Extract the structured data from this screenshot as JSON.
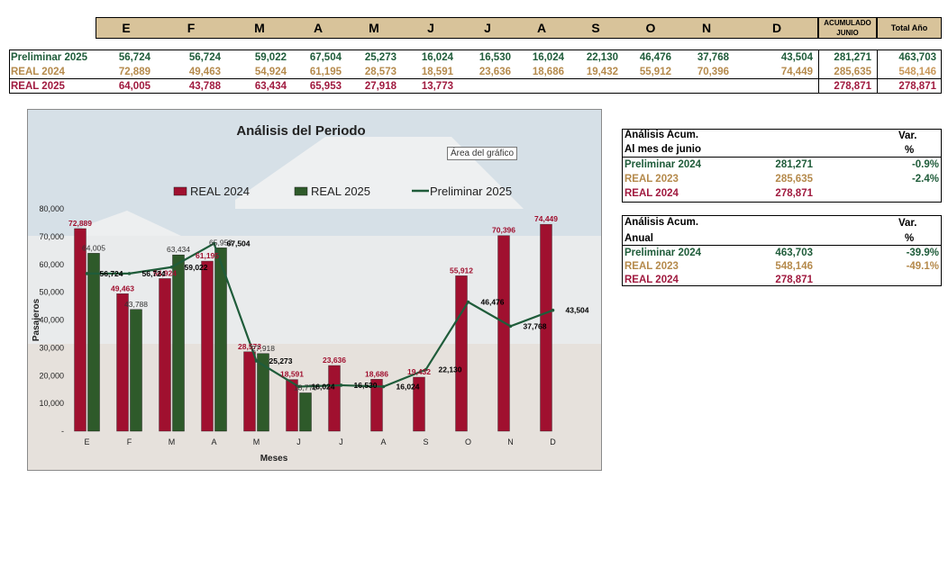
{
  "top_table": {
    "months": [
      "E",
      "F",
      "M",
      "A",
      "M",
      "J",
      "J",
      "A",
      "S",
      "O",
      "N",
      "D"
    ],
    "acum_header": [
      "ACUMULADO",
      "JUNIO"
    ],
    "total_header": "Total Año",
    "rows": [
      {
        "label": "Preliminar 2025",
        "values": [
          "56,724",
          "56,724",
          "59,022",
          "67,504",
          "25,273",
          "16,024",
          "16,530",
          "16,024",
          "22,130",
          "46,476",
          "37,768",
          "43,504"
        ],
        "acum": "281,271",
        "total": "463,703"
      },
      {
        "label": "REAL 2024",
        "values": [
          "72,889",
          "49,463",
          "54,924",
          "61,195",
          "28,573",
          "18,591",
          "23,636",
          "18,686",
          "19,432",
          "55,912",
          "70,396",
          "74,449"
        ],
        "acum": "285,635",
        "total": "548,146"
      },
      {
        "label": "REAL 2025",
        "values": [
          "64,005",
          "43,788",
          "63,434",
          "65,953",
          "27,918",
          "13,773",
          "",
          "",
          "",
          "",
          "",
          ""
        ],
        "acum": "278,871",
        "total": "278,871"
      }
    ]
  },
  "tooltip": "Área del gráfico",
  "chart_data": {
    "type": "bar",
    "title": "Análisis del Periodo",
    "xlabel": "Meses",
    "ylabel": "Pasajeros",
    "categories": [
      "E",
      "F",
      "M",
      "A",
      "M",
      "J",
      "J",
      "A",
      "S",
      "O",
      "N",
      "D"
    ],
    "ylim": [
      0,
      80000
    ],
    "yticks": [
      "-",
      "10,000",
      "20,000",
      "30,000",
      "40,000",
      "50,000",
      "60,000",
      "70,000",
      "80,000"
    ],
    "legend_position": "top",
    "series": [
      {
        "name": "REAL 2024",
        "kind": "bar",
        "color": "#a0102f",
        "values": [
          72889,
          49463,
          54924,
          61195,
          28573,
          18591,
          23636,
          18686,
          19432,
          55912,
          70396,
          74449
        ],
        "labels": [
          "72,889",
          "49,463",
          "54,924",
          "61,195",
          "28,573",
          "18,591",
          "23,636",
          "18,686",
          "19,432",
          "55,912",
          "70,396",
          "74,449"
        ]
      },
      {
        "name": "REAL 2025",
        "kind": "bar",
        "color": "#2e5a2a",
        "values": [
          64005,
          43788,
          63434,
          65953,
          27918,
          13773,
          null,
          null,
          null,
          null,
          null,
          null
        ],
        "labels": [
          "64,005",
          "43,788",
          "63,434",
          "65,953",
          "27,918",
          "13,773",
          "",
          "",
          "",
          "",
          "",
          ""
        ]
      },
      {
        "name": "Preliminar 2025",
        "kind": "line",
        "color": "#1f5c3a",
        "values": [
          56724,
          56724,
          59022,
          67504,
          25273,
          16024,
          16530,
          16024,
          22130,
          46476,
          37768,
          43504
        ],
        "labels": [
          "56,724",
          "56,724",
          "59,022",
          "67,504",
          "25,273",
          "16,024",
          "16,530",
          "16,024",
          "22,130",
          "46,476",
          "37,768",
          "43,504"
        ]
      }
    ]
  },
  "panel_junio": {
    "title1": "Análisis  Acum.",
    "var": "Var.",
    "title2": "Al mes de junio",
    "pct": "%",
    "rows": [
      {
        "label": "Preliminar 2024",
        "value": "281,271",
        "var": "-0.9%"
      },
      {
        "label": "REAL 2023",
        "value": "285,635",
        "var": "-2.4%"
      },
      {
        "label": "REAL 2024",
        "value": "278,871",
        "var": ""
      }
    ]
  },
  "panel_anual": {
    "title1": "Análisis  Acum.",
    "var": "Var.",
    "title2": "Anual",
    "pct": "%",
    "rows": [
      {
        "label": "Preliminar 2024",
        "value": "463,703",
        "var": "-39.9%"
      },
      {
        "label": "REAL 2023",
        "value": "548,146",
        "var": "-49.1%"
      },
      {
        "label": "REAL 2024",
        "value": "278,871",
        "var": ""
      }
    ]
  }
}
